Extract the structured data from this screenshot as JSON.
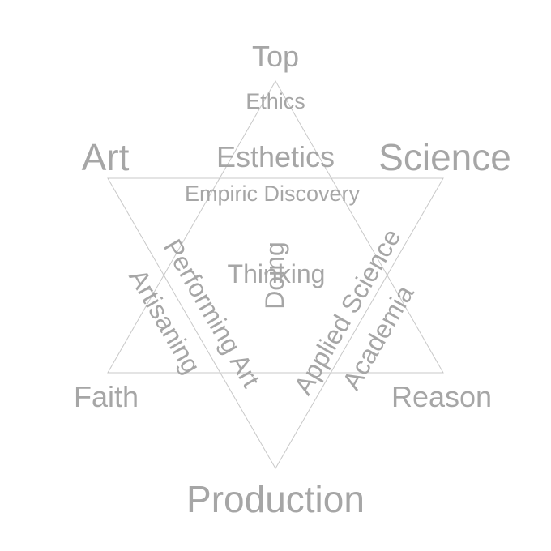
{
  "labels": {
    "top": "Top",
    "ethics": "Ethics",
    "art": "Art",
    "esthetics": "Esthetics",
    "science": "Science",
    "empiric_discovery": "Empiric Discovery",
    "performing_art": "Performing Art",
    "applied_science": "Applied Science",
    "artisaning": "Artisaning",
    "academia": "Academia",
    "thinking": "Thinking",
    "doing": "Doing",
    "faith": "Faith",
    "reason": "Reason",
    "production": "Production"
  },
  "colors": {
    "text": "#a6a6a6",
    "lines": "#c8c8c8"
  }
}
